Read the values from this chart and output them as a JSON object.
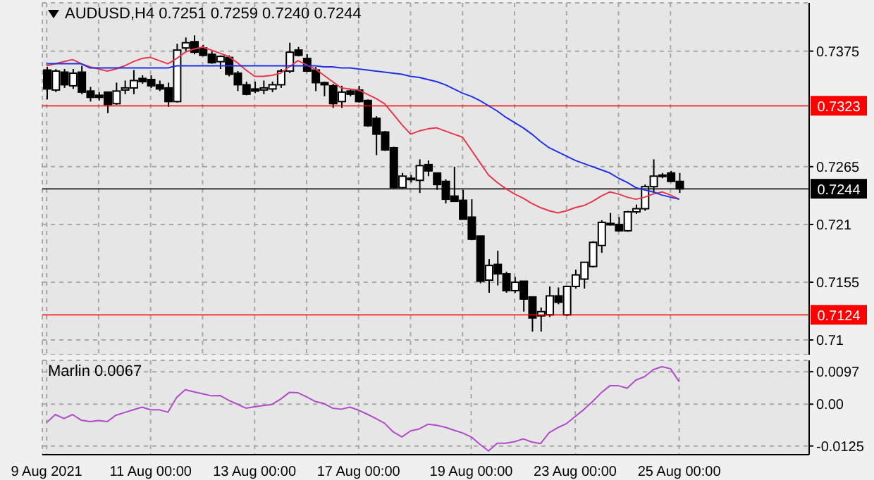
{
  "chart_data": [
    {
      "type": "candlestick",
      "title": "AUDUSD,H4 0.7251 0.7259 0.7240 0.7244",
      "categories": [
        null,
        null,
        null,
        null,
        null,
        null,
        null,
        null,
        null,
        null,
        null,
        null,
        null,
        null,
        null,
        null,
        null,
        null,
        null,
        null,
        null,
        null,
        null,
        null,
        null,
        null,
        null,
        null,
        null,
        null,
        null,
        null,
        null,
        null,
        null,
        null,
        null,
        null,
        null,
        null,
        null,
        null,
        null,
        null,
        null,
        null,
        null,
        null,
        null,
        null,
        null,
        null,
        null,
        null,
        null,
        null,
        null,
        null,
        null,
        null,
        null,
        null,
        null,
        null,
        null,
        null,
        null,
        null,
        null,
        null,
        null,
        null,
        null,
        null
      ],
      "ohlc": [
        [
          0.7357,
          0.736,
          0.7329,
          0.7339
        ],
        [
          0.7338,
          0.7358,
          0.7336,
          0.7356
        ],
        [
          0.7355,
          0.7358,
          0.734,
          0.7343
        ],
        [
          0.7342,
          0.7358,
          0.7339,
          0.7354
        ],
        [
          0.7355,
          0.7361,
          0.7334,
          0.7336
        ],
        [
          0.7337,
          0.7341,
          0.7327,
          0.7331
        ],
        [
          0.7333,
          0.7336,
          0.7328,
          0.7331
        ],
        [
          0.7336,
          0.7336,
          0.7316,
          0.7324
        ],
        [
          0.7325,
          0.7345,
          0.7324,
          0.7337
        ],
        [
          0.7338,
          0.7347,
          0.7334,
          0.734
        ],
        [
          0.734,
          0.7357,
          0.7334,
          0.7347
        ],
        [
          0.7349,
          0.7352,
          0.7344,
          0.7346
        ],
        [
          0.7348,
          0.7352,
          0.734,
          0.7342
        ],
        [
          0.7343,
          0.7347,
          0.7337,
          0.7339
        ],
        [
          0.734,
          0.7345,
          0.7322,
          0.7327
        ],
        [
          0.7327,
          0.7382,
          0.7326,
          0.7376
        ],
        [
          0.7378,
          0.7388,
          0.7375,
          0.7383
        ],
        [
          0.7384,
          0.739,
          0.7372,
          0.7374
        ],
        [
          0.7378,
          0.7381,
          0.737,
          0.7371
        ],
        [
          0.7372,
          0.7375,
          0.7363,
          0.7364
        ],
        [
          0.7365,
          0.7371,
          0.7358,
          0.737
        ],
        [
          0.7369,
          0.7371,
          0.7351,
          0.7353
        ],
        [
          0.7354,
          0.7356,
          0.7337,
          0.7343
        ],
        [
          0.7343,
          0.7346,
          0.7333,
          0.7334
        ],
        [
          0.7339,
          0.7346,
          0.7335,
          0.7337
        ],
        [
          0.7338,
          0.7347,
          0.7334,
          0.734
        ],
        [
          0.7339,
          0.7346,
          0.7336,
          0.7343
        ],
        [
          0.7343,
          0.7358,
          0.734,
          0.7356
        ],
        [
          0.7356,
          0.7383,
          0.7354,
          0.7374
        ],
        [
          0.7376,
          0.7379,
          0.737,
          0.7371
        ],
        [
          0.7368,
          0.7372,
          0.7355,
          0.7356
        ],
        [
          0.7357,
          0.736,
          0.7337,
          0.7345
        ],
        [
          0.7345,
          0.7346,
          0.7332,
          0.7343
        ],
        [
          0.7342,
          0.7344,
          0.7321,
          0.7325
        ],
        [
          0.7327,
          0.7342,
          0.7321,
          0.7336
        ],
        [
          0.7337,
          0.7339,
          0.7332,
          0.7334
        ],
        [
          0.7338,
          0.7342,
          0.7326,
          0.7327
        ],
        [
          0.7328,
          0.7329,
          0.7303,
          0.7304
        ],
        [
          0.7311,
          0.7313,
          0.7276,
          0.7296
        ],
        [
          0.7298,
          0.7299,
          0.728,
          0.7281
        ],
        [
          0.7283,
          0.7284,
          0.7244,
          0.7245
        ],
        [
          0.7245,
          0.7259,
          0.7244,
          0.7256
        ],
        [
          0.7254,
          0.7257,
          0.725,
          0.7253
        ],
        [
          0.7252,
          0.7272,
          0.724,
          0.7266
        ],
        [
          0.7267,
          0.7271,
          0.7256,
          0.7261
        ],
        [
          0.7259,
          0.7259,
          0.7243,
          0.7248
        ],
        [
          0.7251,
          0.7253,
          0.723,
          0.7234
        ],
        [
          0.7237,
          0.7265,
          0.7232,
          0.7232
        ],
        [
          0.7233,
          0.7243,
          0.7215,
          0.7215
        ],
        [
          0.7217,
          0.7234,
          0.7195,
          0.7196
        ],
        [
          0.7199,
          0.7199,
          0.7154,
          0.7156
        ],
        [
          0.7157,
          0.7177,
          0.7145,
          0.7171
        ],
        [
          0.7172,
          0.7185,
          0.7152,
          0.7163
        ],
        [
          0.7163,
          0.7165,
          0.7145,
          0.7147
        ],
        [
          0.7147,
          0.716,
          0.7145,
          0.7155
        ],
        [
          0.7156,
          0.7156,
          0.7127,
          0.7139
        ],
        [
          0.7141,
          0.7141,
          0.7108,
          0.7121
        ],
        [
          0.7123,
          0.7131,
          0.7108,
          0.7127
        ],
        [
          0.7124,
          0.7151,
          0.7122,
          0.7142
        ],
        [
          0.7142,
          0.715,
          0.7134,
          0.7136
        ],
        [
          0.7124,
          0.7151,
          0.7123,
          0.7151
        ],
        [
          0.7151,
          0.7167,
          0.7149,
          0.7162
        ],
        [
          0.7158,
          0.7174,
          0.7149,
          0.7174
        ],
        [
          0.717,
          0.7194,
          0.7169,
          0.7193
        ],
        [
          0.719,
          0.7214,
          0.7183,
          0.7212
        ],
        [
          0.721,
          0.7221,
          0.7209,
          0.7211
        ],
        [
          0.721,
          0.7217,
          0.7203,
          0.7204
        ],
        [
          0.7204,
          0.7223,
          0.7203,
          0.7222
        ],
        [
          0.7222,
          0.7229,
          0.722,
          0.7225
        ],
        [
          0.7225,
          0.7248,
          0.7223,
          0.7246
        ],
        [
          0.7246,
          0.7272,
          0.724,
          0.7256
        ],
        [
          0.7256,
          0.7259,
          0.7254,
          0.7257
        ],
        [
          0.7259,
          0.7261,
          0.725,
          0.7251
        ],
        [
          0.7251,
          0.7259,
          0.724,
          0.7244
        ]
      ],
      "series": [
        {
          "type": "line",
          "color": "#e8364a",
          "values": [
            0.7361,
            0.7363,
            0.7365,
            0.7367,
            0.7363,
            0.736,
            0.7358,
            0.7356,
            0.7358,
            0.7361,
            0.7365,
            0.7368,
            0.7369,
            0.7366,
            0.7363,
            0.7368,
            0.7374,
            0.7377,
            0.7379,
            0.7376,
            0.7373,
            0.737,
            0.7364,
            0.7357,
            0.7351,
            0.7351,
            0.7352,
            0.7354,
            0.736,
            0.7366,
            0.7362,
            0.7358,
            0.7352,
            0.7346,
            0.734,
            0.7339,
            0.7338,
            0.7334,
            0.733,
            0.7325,
            0.7315,
            0.7305,
            0.7296,
            0.7299,
            0.7301,
            0.7302,
            0.7299,
            0.7296,
            0.7293,
            0.7281,
            0.7269,
            0.7257,
            0.725,
            0.7244,
            0.7239,
            0.7235,
            0.723,
            0.7226,
            0.7223,
            0.7221,
            0.7223,
            0.7226,
            0.7228,
            0.7232,
            0.7237,
            0.7241,
            0.7239,
            0.7236,
            0.7234,
            0.7236,
            0.7239,
            0.7241,
            0.7238,
            0.7234
          ]
        },
        {
          "type": "line",
          "color": "#2030e8",
          "values": [
            0.7363,
            0.7363,
            0.7363,
            0.7363,
            0.7363,
            0.7359,
            0.7359,
            0.7359,
            0.7359,
            0.7359,
            0.7359,
            0.7359,
            0.7359,
            0.7359,
            0.7359,
            0.7361,
            0.7361,
            0.7361,
            0.7361,
            0.7361,
            0.7361,
            0.7361,
            0.7361,
            0.7361,
            0.7361,
            0.7361,
            0.7361,
            0.7361,
            0.7361,
            0.7361,
            0.7361,
            0.7361,
            0.736,
            0.736,
            0.7359,
            0.7359,
            0.7358,
            0.7357,
            0.7356,
            0.7355,
            0.7354,
            0.7353,
            0.7351,
            0.735,
            0.7348,
            0.7346,
            0.7343,
            0.7339,
            0.7335,
            0.7332,
            0.7328,
            0.7323,
            0.7318,
            0.7312,
            0.7307,
            0.7302,
            0.7296,
            0.7289,
            0.7283,
            0.7279,
            0.7275,
            0.7271,
            0.7268,
            0.7265,
            0.7262,
            0.7259,
            0.7254,
            0.725,
            0.7245,
            0.7243,
            0.7241,
            0.7238,
            0.7236,
            0.7234
          ]
        }
      ],
      "ylim": [
        0.7086,
        0.7421
      ],
      "yticks": [
        0.71,
        0.7155,
        0.721,
        0.7265,
        0.7375
      ],
      "ref_lines": [
        {
          "axis": "y",
          "value": 0.7323,
          "label": "0.7323",
          "color": "#ff0000"
        },
        {
          "axis": "y",
          "value": 0.7124,
          "label": "0.7124",
          "color": "#ff0000"
        },
        {
          "axis": "y",
          "value": 0.7244,
          "label": "0.7244",
          "color": "#000000"
        }
      ],
      "grid": true,
      "tick_labels": "y"
    },
    {
      "type": "line",
      "title": "Marlin 0.0067",
      "categories": [
        "9 Aug 2021",
        null,
        null,
        null,
        null,
        null,
        null,
        null,
        null,
        null,
        null,
        null,
        "11 Aug 00:00",
        null,
        null,
        null,
        null,
        null,
        null,
        null,
        null,
        null,
        null,
        null,
        "13 Aug 00:00",
        null,
        null,
        null,
        null,
        null,
        null,
        null,
        null,
        null,
        null,
        null,
        "17 Aug 00:00",
        null,
        null,
        null,
        null,
        null,
        null,
        null,
        null,
        null,
        null,
        null,
        null,
        "19 Aug 00:00",
        null,
        null,
        null,
        null,
        null,
        null,
        null,
        null,
        null,
        null,
        null,
        "23 Aug 00:00",
        null,
        null,
        null,
        null,
        null,
        null,
        null,
        null,
        null,
        null,
        null,
        "25 Aug 00:00"
      ],
      "series": [
        {
          "color": "#b04cc8",
          "values": [
            -0.0055,
            -0.0031,
            -0.0043,
            -0.0031,
            -0.0048,
            -0.0052,
            -0.0049,
            -0.0052,
            -0.0033,
            -0.0025,
            -0.0017,
            -0.0009,
            -0.0017,
            -0.0017,
            -0.0024,
            0.002,
            0.0043,
            0.0037,
            0.0031,
            0.0025,
            0.0026,
            0.0012,
            0.0,
            -0.0012,
            -0.0008,
            -0.0004,
            -0.0001,
            0.0015,
            0.0035,
            0.0034,
            0.0022,
            0.0008,
            0.0002,
            -0.0012,
            -0.0015,
            -0.0009,
            -0.0018,
            -0.003,
            -0.0043,
            -0.0057,
            -0.0083,
            -0.0098,
            -0.008,
            -0.0074,
            -0.006,
            -0.0063,
            -0.0069,
            -0.0078,
            -0.0086,
            -0.0098,
            -0.012,
            -0.014,
            -0.0117,
            -0.0117,
            -0.0112,
            -0.0104,
            -0.0113,
            -0.0118,
            -0.0085,
            -0.007,
            -0.0058,
            -0.0037,
            -0.0016,
            0.0008,
            0.0034,
            0.0055,
            0.0055,
            0.0048,
            0.0072,
            0.0082,
            0.0103,
            0.0112,
            0.0106,
            0.0067
          ]
        }
      ],
      "ylim": [
        -0.0151,
        0.0131
      ],
      "yticks": [
        -0.0125,
        {
          "value": 0,
          "label": "0.00"
        },
        0.0097
      ],
      "grid": true
    }
  ]
}
